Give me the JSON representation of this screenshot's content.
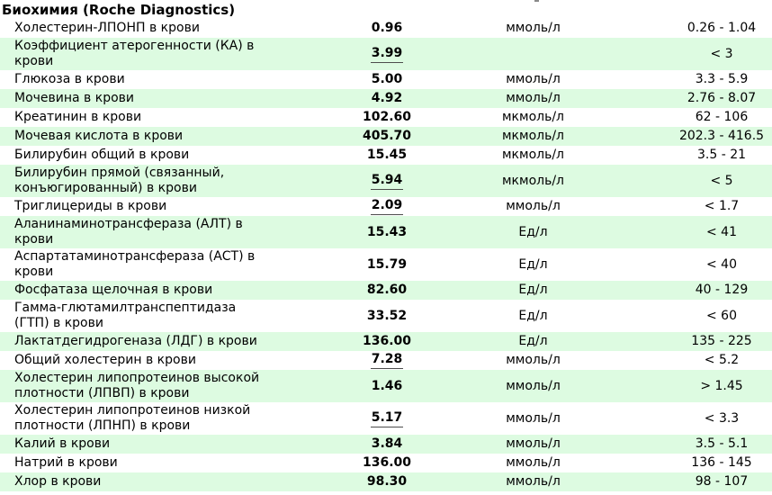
{
  "title": "Биохимия (Roche Diagnostics)",
  "colors": {
    "page_bg": "#ffffff",
    "alt_row_green": "#ddfbe1",
    "text": "#000000",
    "flag_underline": "#4d4d4d"
  },
  "table": {
    "rows": [
      {
        "name": "Холестерин-ЛПОНП в крови",
        "name_lines": [
          "Холестерин-ЛПОНП в крови"
        ],
        "value": "0.96",
        "unit": "ммоль/л",
        "ref": "0.26 - 1.04",
        "flagged": false
      },
      {
        "name": "Коэффициент атерогенности (КА) в крови",
        "name_lines": [
          "Коэффициент атерогенности (КА) в",
          "крови"
        ],
        "value": "3.99",
        "unit": "",
        "ref": "< 3",
        "flagged": true
      },
      {
        "name": "Глюкоза в крови",
        "name_lines": [
          "Глюкоза в крови"
        ],
        "value": "5.00",
        "unit": "ммоль/л",
        "ref": "3.3 - 5.9",
        "flagged": false
      },
      {
        "name": "Мочевина в крови",
        "name_lines": [
          "Мочевина в крови"
        ],
        "value": "4.92",
        "unit": "ммоль/л",
        "ref": "2.76 - 8.07",
        "flagged": false
      },
      {
        "name": "Креатинин в крови",
        "name_lines": [
          "Креатинин в крови"
        ],
        "value": "102.60",
        "unit": "мкмоль/л",
        "ref": "62 - 106",
        "flagged": false
      },
      {
        "name": "Мочевая кислота в крови",
        "name_lines": [
          "Мочевая кислота в крови"
        ],
        "value": "405.70",
        "unit": "мкмоль/л",
        "ref": "202.3 - 416.5",
        "flagged": false
      },
      {
        "name": "Билирубин общий в крови",
        "name_lines": [
          "Билирубин общий в крови"
        ],
        "value": "15.45",
        "unit": "мкмоль/л",
        "ref": "3.5 - 21",
        "flagged": false
      },
      {
        "name": "Билирубин прямой (связанный, конъюгированный) в крови",
        "name_lines": [
          "Билирубин прямой (связанный,",
          "конъюгированный) в крови"
        ],
        "value": "5.94",
        "unit": "мкмоль/л",
        "ref": "< 5",
        "flagged": true
      },
      {
        "name": "Триглицериды в крови",
        "name_lines": [
          "Триглицериды в крови"
        ],
        "value": "2.09",
        "unit": "ммоль/л",
        "ref": "< 1.7",
        "flagged": true
      },
      {
        "name": "Аланинаминотрансфераза (АЛТ) в крови",
        "name_lines": [
          "Аланинаминотрансфераза (АЛТ) в",
          "крови"
        ],
        "value": "15.43",
        "unit": "Ед/л",
        "ref": "< 41",
        "flagged": false
      },
      {
        "name": "Аспартатаминотрансфераза (АСТ) в крови",
        "name_lines": [
          "Аспартатаминотрансфераза (АСТ) в",
          "крови"
        ],
        "value": "15.79",
        "unit": "Ед/л",
        "ref": "< 40",
        "flagged": false
      },
      {
        "name": "Фосфатаза щелочная в крови",
        "name_lines": [
          "Фосфатаза щелочная в крови"
        ],
        "value": "82.60",
        "unit": "Ед/л",
        "ref": "40 - 129",
        "flagged": false
      },
      {
        "name": "Гамма-глютамилтранспептидаза (ГТП) в крови",
        "name_lines": [
          "Гамма-глютамилтранспептидаза",
          "(ГТП) в крови"
        ],
        "value": "33.52",
        "unit": "Ед/л",
        "ref": "< 60",
        "flagged": false
      },
      {
        "name": "Лактатдегидрогеназа (ЛДГ) в крови",
        "name_lines": [
          "Лактатдегидрогеназа (ЛДГ) в крови"
        ],
        "value": "136.00",
        "unit": "Ед/л",
        "ref": "135 - 225",
        "flagged": false
      },
      {
        "name": "Общий холестерин в крови",
        "name_lines": [
          "Общий холестерин в крови"
        ],
        "value": "7.28",
        "unit": "ммоль/л",
        "ref": "< 5.2",
        "flagged": true
      },
      {
        "name": "Холестерин липопротеинов высокой плотности (ЛПВП) в крови",
        "name_lines": [
          "Холестерин липопротеинов высокой",
          "плотности (ЛПВП) в крови"
        ],
        "value": "1.46",
        "unit": "ммоль/л",
        "ref": "> 1.45",
        "flagged": false
      },
      {
        "name": "Холестерин липопротеинов низкой плотности (ЛПНП) в крови",
        "name_lines": [
          "Холестерин липопротеинов низкой",
          "плотности (ЛПНП) в крови"
        ],
        "value": "5.17",
        "unit": "ммоль/л",
        "ref": "< 3.3",
        "flagged": true
      },
      {
        "name": "Калий в крови",
        "name_lines": [
          "Калий в крови"
        ],
        "value": "3.84",
        "unit": "ммоль/л",
        "ref": "3.5 - 5.1",
        "flagged": false
      },
      {
        "name": "Натрий в крови",
        "name_lines": [
          "Натрий в крови"
        ],
        "value": "136.00",
        "unit": "ммоль/л",
        "ref": "136 - 145",
        "flagged": false
      },
      {
        "name": "Хлор в крови",
        "name_lines": [
          "Хлор в крови"
        ],
        "value": "98.30",
        "unit": "ммоль/л",
        "ref": "98 - 107",
        "flagged": false
      }
    ]
  }
}
